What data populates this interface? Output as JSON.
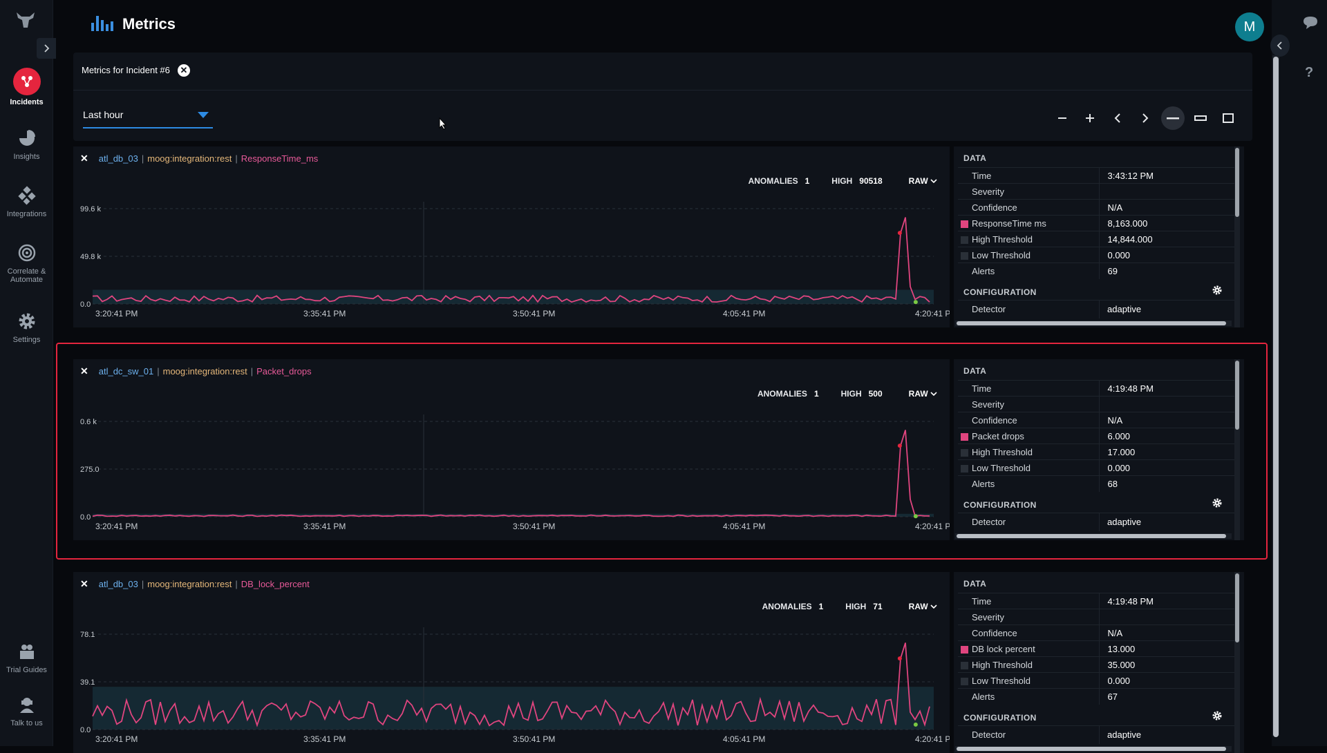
{
  "header": {
    "title": "Metrics",
    "avatar_initial": "M"
  },
  "nav": {
    "items": [
      {
        "label": "Incidents",
        "icon": "incidents-icon"
      },
      {
        "label": "Insights",
        "icon": "insights-icon"
      },
      {
        "label": "Integrations",
        "icon": "integrations-icon"
      },
      {
        "label": "Correlate &",
        "label2": "Automate",
        "icon": "correlate-icon"
      },
      {
        "label": "Settings",
        "icon": "settings-icon"
      },
      {
        "label": "Trial Guides",
        "icon": "trial-guides-icon"
      },
      {
        "label": "Talk to us",
        "icon": "talk-icon"
      }
    ]
  },
  "incident": {
    "title": "Metrics for Incident #6",
    "time_range": "Last hour"
  },
  "zoom_controls": [
    "−",
    "+",
    "‹",
    "›",
    "—",
    "▭",
    "☐"
  ],
  "x_ticks": [
    "3:20:41 PM",
    "3:35:41 PM",
    "3:50:41 PM",
    "4:05:41 PM",
    "4:20:41 PM"
  ],
  "metrics": [
    {
      "host": "atl_db_03",
      "source": "moog:integration:rest",
      "metric": "ResponseTime_ms",
      "anomalies_label": "ANOMALIES",
      "anomalies": "1",
      "high_label": "HIGH",
      "high": "90518",
      "mode": "RAW",
      "y_ticks": [
        "99.6 k",
        "49.8 k",
        "0.0"
      ],
      "y_max": 99600,
      "chart_data": {
        "type": "line",
        "ylim": [
          0,
          99600
        ],
        "band": [
          0,
          14844
        ],
        "spike": {
          "x_frac_start": 0.958,
          "peak": 90518
        },
        "baseline_low": 2000,
        "baseline_high": 9000
      },
      "data": {
        "title": "DATA",
        "rows": [
          {
            "k": "Time",
            "v": "3:43:12 PM"
          },
          {
            "k": "Severity",
            "v": ""
          },
          {
            "k": "Confidence",
            "v": "N/A"
          },
          {
            "k": "ResponseTime ms",
            "v": "8,163.000",
            "swatch": "#e0457f"
          },
          {
            "k": "High Threshold",
            "v": "14,844.000",
            "swatch": "#2a3038"
          },
          {
            "k": "Low Threshold",
            "v": "0.000",
            "swatch": "#2a3038"
          },
          {
            "k": "Alerts",
            "v": "69"
          }
        ],
        "config_title": "CONFIGURATION",
        "detector_label": "Detector",
        "detector_value": "adaptive"
      }
    },
    {
      "host": "atl_dc_sw_01",
      "source": "moog:integration:rest",
      "metric": "Packet_drops",
      "anomalies_label": "ANOMALIES",
      "anomalies": "1",
      "high_label": "HIGH",
      "high": "500",
      "mode": "RAW",
      "y_ticks": [
        "0.6 k",
        "275.0",
        "0.0"
      ],
      "y_max": 550,
      "chart_data": {
        "type": "line",
        "ylim": [
          0,
          550
        ],
        "band": [
          0,
          17
        ],
        "spike": {
          "x_frac_start": 0.958,
          "peak": 500
        },
        "baseline_low": 2,
        "baseline_high": 10
      },
      "data": {
        "title": "DATA",
        "rows": [
          {
            "k": "Time",
            "v": "4:19:48 PM"
          },
          {
            "k": "Severity",
            "v": ""
          },
          {
            "k": "Confidence",
            "v": "N/A"
          },
          {
            "k": "Packet drops",
            "v": "6.000",
            "swatch": "#e0457f"
          },
          {
            "k": "High Threshold",
            "v": "17.000",
            "swatch": "#2a3038"
          },
          {
            "k": "Low Threshold",
            "v": "0.000",
            "swatch": "#2a3038"
          },
          {
            "k": "Alerts",
            "v": "68"
          }
        ],
        "config_title": "CONFIGURATION",
        "detector_label": "Detector",
        "detector_value": "adaptive"
      }
    },
    {
      "host": "atl_db_03",
      "source": "moog:integration:rest",
      "metric": "DB_lock_percent",
      "anomalies_label": "ANOMALIES",
      "anomalies": "1",
      "high_label": "HIGH",
      "high": "71",
      "mode": "RAW",
      "y_ticks": [
        "78.1",
        "39.1",
        "0.0"
      ],
      "y_max": 78.1,
      "chart_data": {
        "type": "line",
        "ylim": [
          0,
          78.1
        ],
        "band": [
          0,
          35
        ],
        "spike": {
          "x_frac_start": 0.958,
          "peak": 71
        },
        "baseline_low": 3,
        "baseline_high": 25
      },
      "data": {
        "title": "DATA",
        "rows": [
          {
            "k": "Time",
            "v": "4:19:48 PM"
          },
          {
            "k": "Severity",
            "v": ""
          },
          {
            "k": "Confidence",
            "v": "N/A"
          },
          {
            "k": "DB lock percent",
            "v": "13.000",
            "swatch": "#e0457f"
          },
          {
            "k": "High Threshold",
            "v": "35.000",
            "swatch": "#2a3038"
          },
          {
            "k": "Low Threshold",
            "v": "0.000",
            "swatch": "#2a3038"
          },
          {
            "k": "Alerts",
            "v": "67"
          }
        ],
        "config_title": "CONFIGURATION",
        "detector_label": "Detector",
        "detector_value": "adaptive"
      }
    }
  ],
  "colors": {
    "accent": "#2d8be3",
    "line": "#e0457f",
    "selected": "#e5253e",
    "band": "#17303a"
  }
}
